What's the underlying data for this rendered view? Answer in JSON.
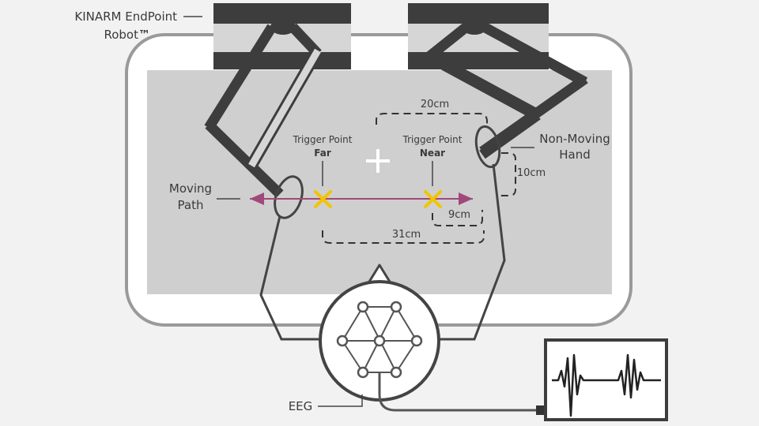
{
  "labels": {
    "robot_line1": "KINARM EndPoint",
    "robot_line2": "Robot",
    "robot_tm": "™",
    "moving_line1": "Moving",
    "moving_line2": "Path",
    "nonmoving_line1": "Non-Moving",
    "nonmoving_line2": "Hand",
    "eeg": "EEG"
  },
  "trigger_far": {
    "title": "Trigger Point",
    "name": "Far"
  },
  "trigger_near": {
    "title": "Trigger Point",
    "name": "Near"
  },
  "distances": {
    "width_hand": "20cm",
    "height_hand": "10cm",
    "near_offset": "9cm",
    "far_span": "31cm"
  },
  "colors": {
    "background": "#f2f2f2",
    "workspace": "#cfcfcf",
    "frame_stroke": "#9a9a9a",
    "robot_dark": "#3d3d3d",
    "robot_light": "#d6d6d6",
    "path_arrow": "#a0497a",
    "trigger_x": "#f2c500",
    "line": "#444444"
  },
  "icons": {
    "fixation": "plus-icon",
    "trigger": "x-mark-icon"
  }
}
